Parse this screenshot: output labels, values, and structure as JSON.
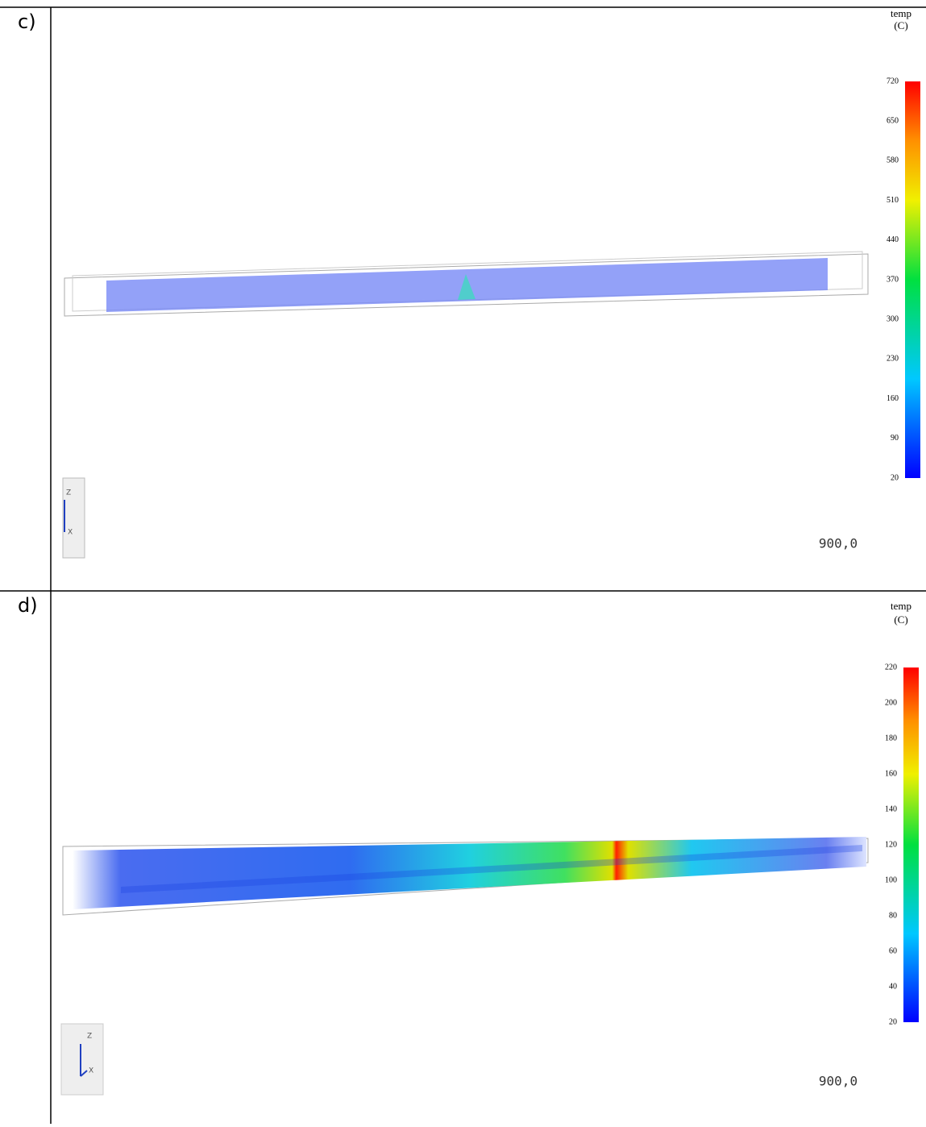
{
  "panels": [
    {
      "label": "c)",
      "legend_title": "temp",
      "legend_unit": "(C)",
      "ticks": [
        720,
        650,
        580,
        510,
        440,
        370,
        300,
        230,
        160,
        90,
        20
      ],
      "time": "900,0",
      "axis_z": "Z",
      "axis_x": "X"
    },
    {
      "label": "d)",
      "legend_title": "temp",
      "legend_unit": "(C)",
      "ticks": [
        220,
        200,
        180,
        160,
        140,
        120,
        100,
        80,
        60,
        40,
        20
      ],
      "time": "900,0",
      "axis_z": "Z",
      "axis_x": "X"
    }
  ]
}
